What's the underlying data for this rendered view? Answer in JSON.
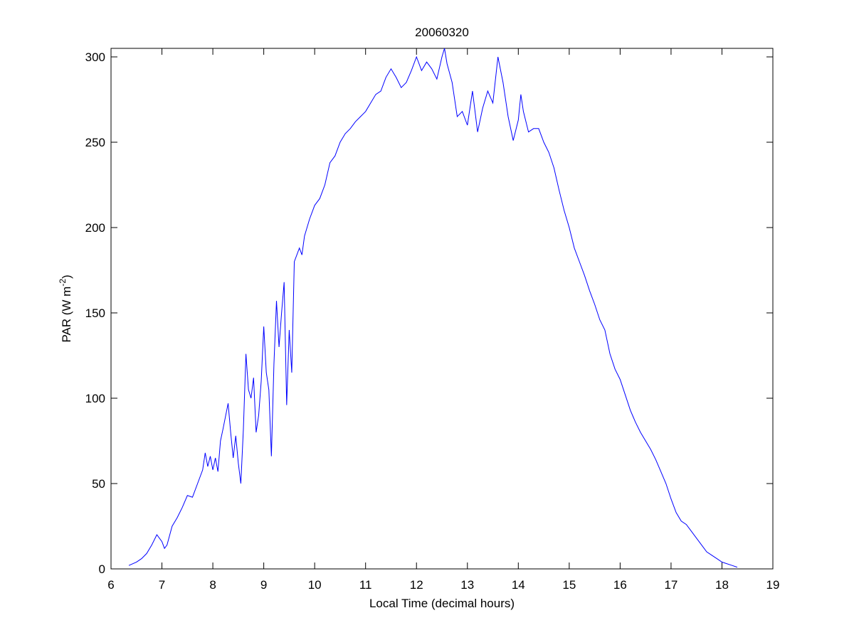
{
  "chart_data": {
    "type": "line",
    "title": "20060320",
    "xlabel": "Local Time (decimal hours)",
    "ylabel_parts": [
      "PAR (W m",
      "-2",
      ")"
    ],
    "xlim": [
      6,
      19
    ],
    "ylim": [
      0,
      305
    ],
    "xticks": [
      6,
      7,
      8,
      9,
      10,
      11,
      12,
      13,
      14,
      15,
      16,
      17,
      18,
      19
    ],
    "yticks": [
      0,
      50,
      100,
      150,
      200,
      250,
      300
    ],
    "series": [
      {
        "color": "#0000ff",
        "x": [
          6.35,
          6.5,
          6.6,
          6.7,
          6.8,
          6.9,
          7.0,
          7.05,
          7.1,
          7.2,
          7.3,
          7.4,
          7.5,
          7.6,
          7.7,
          7.8,
          7.85,
          7.9,
          7.95,
          8.0,
          8.05,
          8.1,
          8.15,
          8.2,
          8.3,
          8.35,
          8.4,
          8.45,
          8.5,
          8.55,
          8.6,
          8.65,
          8.7,
          8.75,
          8.8,
          8.85,
          8.9,
          8.95,
          9.0,
          9.05,
          9.1,
          9.15,
          9.2,
          9.25,
          9.3,
          9.35,
          9.4,
          9.45,
          9.5,
          9.55,
          9.6,
          9.7,
          9.75,
          9.8,
          9.9,
          10.0,
          10.1,
          10.2,
          10.3,
          10.4,
          10.5,
          10.6,
          10.7,
          10.8,
          10.9,
          11.0,
          11.1,
          11.2,
          11.3,
          11.4,
          11.5,
          11.6,
          11.7,
          11.8,
          11.9,
          12.0,
          12.1,
          12.2,
          12.3,
          12.4,
          12.5,
          12.55,
          12.6,
          12.7,
          12.8,
          12.9,
          13.0,
          13.1,
          13.2,
          13.3,
          13.4,
          13.5,
          13.6,
          13.7,
          13.8,
          13.9,
          14.0,
          14.05,
          14.1,
          14.2,
          14.3,
          14.4,
          14.5,
          14.6,
          14.7,
          14.8,
          14.9,
          15.0,
          15.1,
          15.2,
          15.3,
          15.4,
          15.5,
          15.6,
          15.7,
          15.8,
          15.9,
          16.0,
          16.1,
          16.2,
          16.3,
          16.4,
          16.5,
          16.6,
          16.7,
          16.8,
          16.9,
          17.0,
          17.1,
          17.2,
          17.3,
          17.4,
          17.5,
          17.6,
          17.7,
          17.8,
          17.9,
          18.0,
          18.2,
          18.3
        ],
        "values": [
          2,
          4,
          6,
          9,
          14,
          20,
          16,
          12,
          14,
          25,
          30,
          36,
          43,
          42,
          50,
          58,
          68,
          60,
          66,
          58,
          65,
          57,
          75,
          82,
          97,
          80,
          65,
          78,
          62,
          50,
          82,
          126,
          105,
          100,
          112,
          80,
          90,
          110,
          142,
          115,
          105,
          66,
          120,
          157,
          130,
          150,
          168,
          96,
          140,
          115,
          180,
          188,
          184,
          195,
          205,
          213,
          217,
          225,
          238,
          242,
          250,
          255,
          258,
          262,
          265,
          268,
          273,
          278,
          280,
          288,
          293,
          288,
          282,
          285,
          292,
          300,
          292,
          297,
          293,
          287,
          300,
          305,
          296,
          285,
          265,
          268,
          260,
          280,
          256,
          270,
          280,
          273,
          300,
          285,
          265,
          251,
          263,
          278,
          268,
          256,
          258,
          258,
          250,
          244,
          235,
          222,
          210,
          200,
          188,
          180,
          172,
          163,
          155,
          146,
          140,
          126,
          117,
          111,
          102,
          93,
          86,
          80,
          75,
          70,
          64,
          57,
          50,
          41,
          33,
          28,
          26,
          22,
          18,
          14,
          10,
          8,
          6,
          4,
          2,
          1
        ]
      }
    ]
  }
}
